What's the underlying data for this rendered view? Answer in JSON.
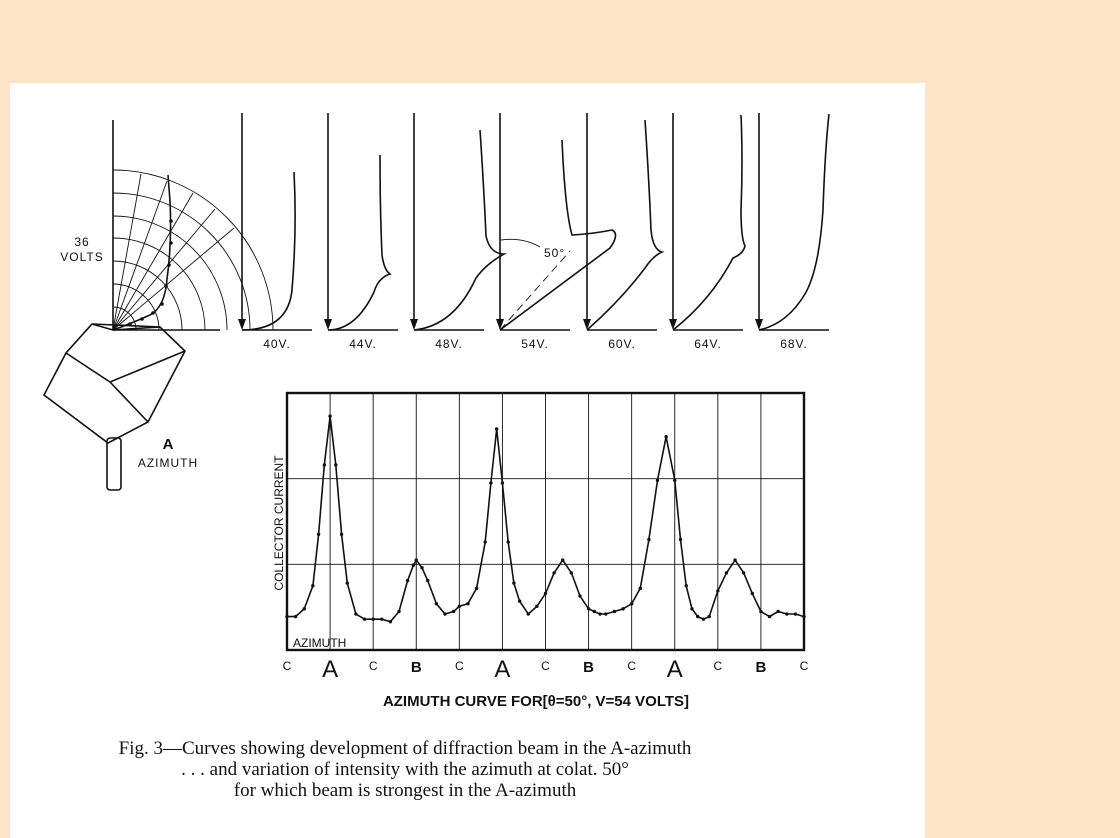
{
  "figure": {
    "caption_lines": [
      "Fig. 3—Curves showing development of diffraction beam in the A-azimuth",
      ". . . and variation of intensity with the azimuth at colat. 50°",
      "for which beam is strongest in the A-azimuth"
    ]
  },
  "polar_panel": {
    "voltage_label_lines": [
      "36",
      "VOLTS"
    ],
    "azimuth_label_lines": [
      "A",
      "AZIMUTH"
    ]
  },
  "beam_panels": {
    "voltage_labels": [
      "40V.",
      "44V.",
      "48V.",
      "54V.",
      "60V.",
      "64V.",
      "68V."
    ],
    "angle_label": "50°"
  },
  "chart_data": {
    "type": "line",
    "title": "AZIMUTH  CURVE  FOR[θ=50°, V=54 VOLTS]",
    "ylabel": "COLLECTOR  CURRENT",
    "xlabel": "AZIMUTH",
    "x_tick_labels": [
      "C",
      "A",
      "C",
      "B",
      "C",
      "A",
      "C",
      "B",
      "C",
      "A",
      "C",
      "B",
      "C"
    ],
    "x_range": [
      0,
      360
    ],
    "y_range": [
      0,
      10
    ],
    "grid": true,
    "series": [
      {
        "x": [
          0,
          6,
          12,
          18,
          22,
          26,
          30,
          34,
          38,
          42,
          48,
          54,
          60,
          66,
          72,
          78,
          84,
          88,
          90,
          94,
          98,
          104,
          110,
          116,
          120,
          126,
          132,
          138,
          142,
          146,
          150,
          154,
          158,
          162,
          168,
          174,
          180,
          186,
          192,
          198,
          204,
          210,
          214,
          218,
          222,
          228,
          234,
          240,
          246,
          252,
          258,
          264,
          270,
          274,
          278,
          282,
          286,
          290,
          294,
          300,
          306,
          312,
          318,
          324,
          330,
          336,
          342,
          348,
          354,
          360
        ],
        "y": [
          1.3,
          1.3,
          1.6,
          2.5,
          4.5,
          7.2,
          9.1,
          7.2,
          4.5,
          2.6,
          1.4,
          1.2,
          1.2,
          1.2,
          1.1,
          1.5,
          2.7,
          3.3,
          3.5,
          3.2,
          2.7,
          1.8,
          1.4,
          1.5,
          1.7,
          1.8,
          2.4,
          4.2,
          6.5,
          8.6,
          6.5,
          4.2,
          2.6,
          1.9,
          1.4,
          1.7,
          2.2,
          3.0,
          3.5,
          3.0,
          2.1,
          1.6,
          1.5,
          1.4,
          1.4,
          1.5,
          1.6,
          1.8,
          2.4,
          4.3,
          6.6,
          8.3,
          6.6,
          4.3,
          2.5,
          1.6,
          1.3,
          1.2,
          1.3,
          2.3,
          3.0,
          3.5,
          3.0,
          2.2,
          1.5,
          1.3,
          1.5,
          1.4,
          1.4,
          1.3
        ]
      }
    ]
  }
}
